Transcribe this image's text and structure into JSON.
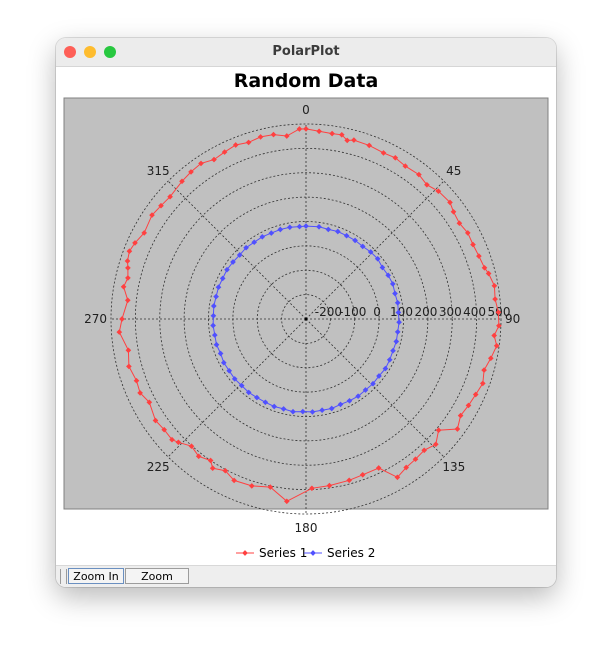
{
  "window": {
    "title": "PolarPlot"
  },
  "toolbar": {
    "zoom_in_label": "Zoom In",
    "zoom_out_label": "Zoom Out"
  },
  "colors": {
    "series1": "#ff4040",
    "series2": "#5050ff",
    "plot_bg": "#c0c0c0"
  },
  "chart_data": {
    "type": "polar",
    "title": "Random Data",
    "radial_range": [
      -300,
      500
    ],
    "radial_ticks": [
      "-200",
      "-100",
      "0",
      "100",
      "200",
      "300",
      "400",
      "500"
    ],
    "angle_labels": [
      "0",
      "45",
      "90",
      "135",
      "180",
      "225",
      "270",
      "315"
    ],
    "grid": true,
    "legend": "bottom",
    "series": [
      {
        "name": "Series 1",
        "points": [
          [
            0,
            480
          ],
          [
            4,
            472
          ],
          [
            8,
            468
          ],
          [
            11,
            470
          ],
          [
            13,
            452
          ],
          [
            15,
            460
          ],
          [
            20,
            458
          ],
          [
            25,
            452
          ],
          [
            29,
            456
          ],
          [
            33,
            448
          ],
          [
            38,
            452
          ],
          [
            42,
            441
          ],
          [
            46,
            455
          ],
          [
            51,
            460
          ],
          [
            54,
            448
          ],
          [
            58,
            442
          ],
          [
            62,
            452
          ],
          [
            66,
            450
          ],
          [
            70,
            455
          ],
          [
            74,
            462
          ],
          [
            76,
            472
          ],
          [
            80,
            485
          ],
          [
            84,
            480
          ],
          [
            88,
            490
          ],
          [
            92,
            492
          ],
          [
            95,
            475
          ],
          [
            98,
            490
          ],
          [
            102,
            475
          ],
          [
            106,
            460
          ],
          [
            110,
            472
          ],
          [
            114,
            462
          ],
          [
            118,
            455
          ],
          [
            122,
            448
          ],
          [
            126,
            468
          ],
          [
            130,
            410
          ],
          [
            134,
            440
          ],
          [
            138,
            425
          ],
          [
            142,
            430
          ],
          [
            146,
            435
          ],
          [
            150,
            450
          ],
          [
            154,
            380
          ],
          [
            160,
            380
          ],
          [
            165,
            385
          ],
          [
            172,
            390
          ],
          [
            178,
            395
          ],
          [
            186,
            452
          ],
          [
            192,
            405
          ],
          [
            198,
            420
          ],
          [
            204,
            425
          ],
          [
            208,
            405
          ],
          [
            212,
            422
          ],
          [
            214,
            400
          ],
          [
            218,
            415
          ],
          [
            222,
            402
          ],
          [
            226,
            428
          ],
          [
            228,
            440
          ],
          [
            232,
            438
          ],
          [
            236,
            445
          ],
          [
            242,
            428
          ],
          [
            246,
            445
          ],
          [
            250,
            440
          ],
          [
            255,
            452
          ],
          [
            260,
            440
          ],
          [
            266,
            468
          ],
          [
            270,
            455
          ],
          [
            276,
            435
          ],
          [
            280,
            460
          ],
          [
            283,
            450
          ],
          [
            286,
            460
          ],
          [
            288,
            470
          ],
          [
            291,
            476
          ],
          [
            294,
            468
          ],
          [
            298,
            452
          ],
          [
            304,
            462
          ],
          [
            308,
            455
          ],
          [
            312,
            450
          ],
          [
            318,
            460
          ],
          [
            322,
            466
          ],
          [
            326,
            470
          ],
          [
            330,
            455
          ],
          [
            334,
            462
          ],
          [
            338,
            470
          ],
          [
            342,
            462
          ],
          [
            346,
            470
          ],
          [
            350,
            468
          ],
          [
            354,
            455
          ],
          [
            358,
            480
          ]
        ]
      },
      {
        "name": "Series 2",
        "points": [
          [
            0,
            81
          ],
          [
            8,
            82
          ],
          [
            14,
            79
          ],
          [
            20,
            82
          ],
          [
            26,
            80
          ],
          [
            32,
            80
          ],
          [
            38,
            78
          ],
          [
            44,
            82
          ],
          [
            50,
            84
          ],
          [
            56,
            78
          ],
          [
            62,
            82
          ],
          [
            68,
            84
          ],
          [
            74,
            80
          ],
          [
            80,
            82
          ],
          [
            86,
            80
          ],
          [
            92,
            82
          ],
          [
            98,
            80
          ],
          [
            104,
            82
          ],
          [
            110,
            80
          ],
          [
            116,
            82
          ],
          [
            122,
            84
          ],
          [
            128,
            80
          ],
          [
            134,
            82
          ],
          [
            140,
            80
          ],
          [
            146,
            82
          ],
          [
            152,
            80
          ],
          [
            158,
            78
          ],
          [
            164,
            82
          ],
          [
            170,
            80
          ],
          [
            176,
            82
          ],
          [
            182,
            80
          ],
          [
            188,
            84
          ],
          [
            194,
            80
          ],
          [
            200,
            82
          ],
          [
            206,
            80
          ],
          [
            212,
            80
          ],
          [
            218,
            82
          ],
          [
            224,
            80
          ],
          [
            230,
            82
          ],
          [
            236,
            80
          ],
          [
            242,
            82
          ],
          [
            248,
            78
          ],
          [
            254,
            82
          ],
          [
            260,
            80
          ],
          [
            266,
            82
          ],
          [
            272,
            80
          ],
          [
            278,
            82
          ],
          [
            284,
            80
          ],
          [
            290,
            82
          ],
          [
            296,
            80
          ],
          [
            302,
            82
          ],
          [
            308,
            80
          ],
          [
            314,
            78
          ],
          [
            320,
            82
          ],
          [
            326,
            80
          ],
          [
            332,
            82
          ],
          [
            338,
            80
          ],
          [
            344,
            82
          ],
          [
            350,
            82
          ],
          [
            356,
            80
          ]
        ]
      }
    ]
  }
}
